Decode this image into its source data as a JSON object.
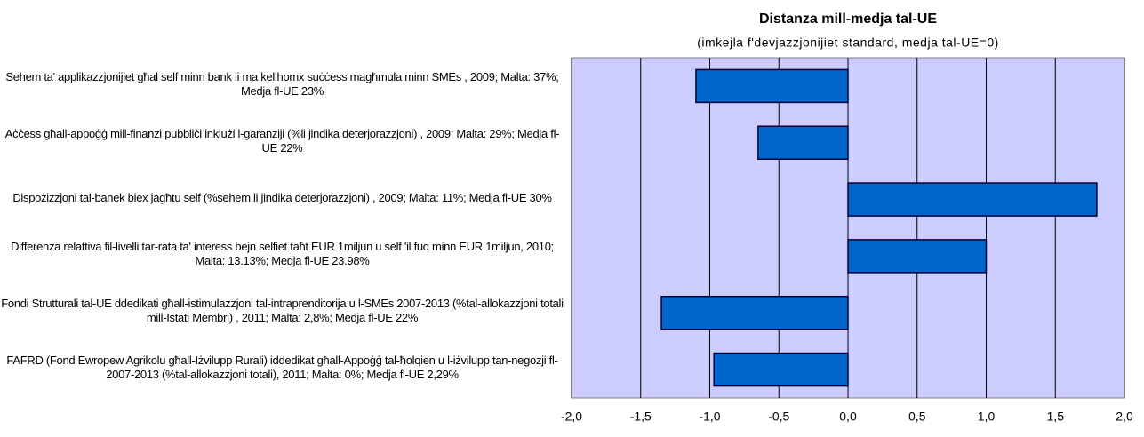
{
  "chart_data": {
    "type": "hbar",
    "title": "Distanza mill-medja tal-UE",
    "subtitle": "(imkejla f'devjazzjonijiet standard, medja tal-UE=0)",
    "categories": [
      "Sehem ta' applikazzjonijiet għal self minn bank li ma kellhomx suċċess magħmula minn SMEs , 2009; Malta: 37%; Medja fl-UE 23%",
      "Aċċess għall-appoġġ mill-finanzi pubbliċi inklużi l-garanziji (%li jindika deterjorazzjoni) , 2009; Malta: 29%; Medja fl-UE 22%",
      "Dispożizzjoni tal-banek biex jagħtu self (%sehem li jindika deterjorazzjoni) , 2009; Malta: 11%; Medja fl-UE 30%",
      "Differenza relattiva fil-livelli tar-rata ta' interess bejn selfiet taħt EUR 1miljun u self 'il fuq minn EUR 1miljun, 2010; Malta: 13.13%; Medja fl-UE 23.98%",
      "Fondi Strutturali tal-UE ddedikati għall-istimulazzjoni tal-intraprenditorija u l-SMEs 2007-2013 (%tal-allokazzjoni totali mill-Istati Membri) , 2011; Malta: 2,8%; Medja fl-UE 22%",
      "FAFRD (Fond Ewropew Agrikolu għall-Iżvilupp Rurali) iddedikat għall-Appoġġ tal-ħolqien u l-iżvilupp tan-negozji fl-2007-2013 (%tal-allokazzjoni totali), 2011; Malta: 0%; Medja fl-UE 2,29%"
    ],
    "values": [
      -1.1,
      -0.65,
      1.8,
      1.0,
      -1.35,
      -0.97
    ],
    "color": "#0066cc",
    "plot_background": "#ccccff",
    "xlim": [
      -2.0,
      2.0
    ],
    "xticks": [
      {
        "value": -2.0,
        "label": "-2,0"
      },
      {
        "value": -1.5,
        "label": "-1,5"
      },
      {
        "value": -1.0,
        "label": "-1,0"
      },
      {
        "value": -0.5,
        "label": "-0,5"
      },
      {
        "value": 0,
        "label": "0,0"
      },
      {
        "value": 0.5,
        "label": "0,5"
      },
      {
        "value": 1.0,
        "label": "1,0"
      },
      {
        "value": 1.5,
        "label": "1,5"
      },
      {
        "value": 2.0,
        "label": "2,0"
      }
    ],
    "grid": true
  }
}
